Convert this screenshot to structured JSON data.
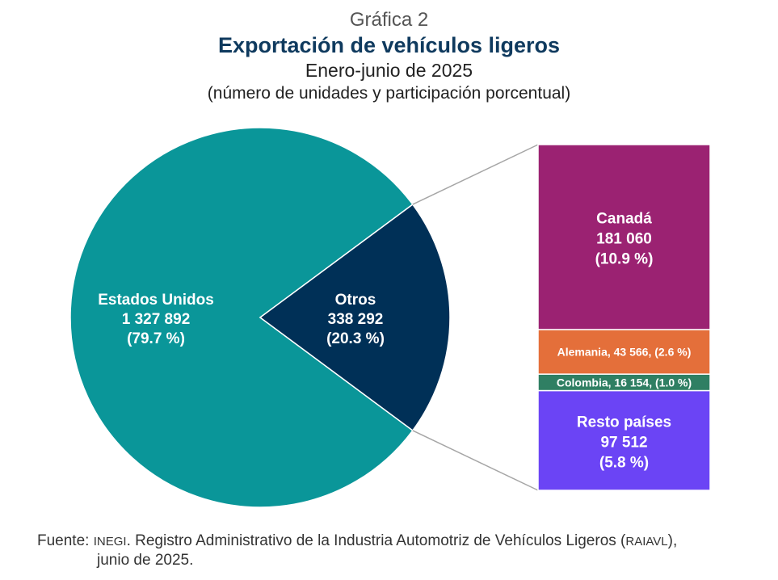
{
  "header": {
    "label": "Gráfica 2",
    "title": "Exportación de vehículos ligeros",
    "subtitle": "Enero-junio de 2025",
    "note": "(número de unidades y participación porcentual)"
  },
  "chart_data": {
    "type": "pie",
    "title": "Exportación de vehículos ligeros",
    "subtitle": "Enero-junio de 2025",
    "pie": {
      "slices": [
        {
          "name": "Estados Unidos",
          "value": 1327892,
          "value_label": "1 327 892",
          "percent_label": "(79.7 %)",
          "color": "#0a9699"
        },
        {
          "name": "Otros",
          "value": 338292,
          "value_label": "338 292",
          "percent_label": "(20.3 %)",
          "color": "#003057"
        }
      ]
    },
    "breakdown_of": "Otros",
    "breakdown": [
      {
        "name": "Canadá",
        "value": 181060,
        "value_label": "181 060",
        "percent_label": "(10.9 %)",
        "color": "#9b2272"
      },
      {
        "name": "Alemania",
        "value": 43566,
        "inline_label": "Alemania, 43 566, (2.6 %)",
        "color": "#e46f3a"
      },
      {
        "name": "Colombia",
        "value": 16154,
        "inline_label": "Colombia,  16 154, (1.0 %)",
        "color": "#2f7f63"
      },
      {
        "name": "Resto países",
        "value": 97512,
        "value_label": "97 512",
        "percent_label": "(5.8 %)",
        "color": "#6b44f5"
      }
    ]
  },
  "source": {
    "prefix": "Fuente: ",
    "org": "INEGI",
    "text_1": ". Registro Administrativo de la Industria Automotriz de Vehículos Ligeros (",
    "acronym": "RAIAVL",
    "text_2": "),",
    "line2": "junio de 2025."
  }
}
